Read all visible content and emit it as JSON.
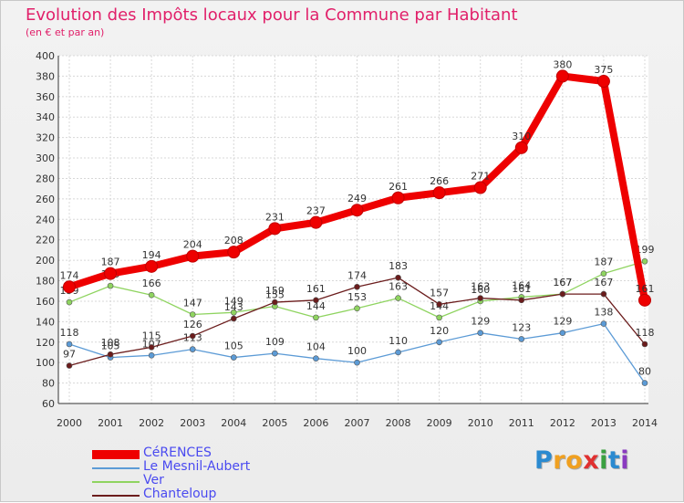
{
  "title": "Evolution des Impôts locaux pour la Commune par Habitant",
  "subtitle": "(en € et par an)",
  "brand": {
    "parts": [
      {
        "text": "P",
        "color": "#2a8ad0"
      },
      {
        "text": "r",
        "color": "#f0a020"
      },
      {
        "text": "o",
        "color": "#f0a020"
      },
      {
        "text": "x",
        "color": "#e03030"
      },
      {
        "text": "i",
        "color": "#3aa040"
      },
      {
        "text": "t",
        "color": "#2a8ad0"
      },
      {
        "text": "i",
        "color": "#8a3ac0"
      }
    ]
  },
  "chart_data": {
    "type": "line",
    "title": "Evolution des Impôts locaux pour la Commune par Habitant",
    "subtitle": "(en € et par an)",
    "categories": [
      "2000",
      "2001",
      "2002",
      "2003",
      "2004",
      "2005",
      "2006",
      "2007",
      "2008",
      "2009",
      "2010",
      "2011",
      "2012",
      "2013",
      "2014"
    ],
    "ylim": [
      60,
      400
    ],
    "yticks": [
      60,
      80,
      100,
      120,
      140,
      160,
      180,
      200,
      220,
      240,
      260,
      280,
      300,
      320,
      340,
      360,
      380,
      400
    ],
    "grid": true,
    "legend": "bottom-left",
    "series": [
      {
        "name": "CéRENCES",
        "color": "#ee0000",
        "values": [
          174,
          187,
          194,
          204,
          208,
          231,
          237,
          249,
          261,
          266,
          271,
          310,
          380,
          375,
          161
        ]
      },
      {
        "name": "Le Mesnil-Aubert",
        "color": "#5c9bd6",
        "values": [
          118,
          105,
          107,
          113,
          105,
          109,
          104,
          100,
          110,
          120,
          129,
          123,
          129,
          138,
          80
        ]
      },
      {
        "name": "Ver",
        "color": "#8fd460",
        "values": [
          159,
          175,
          166,
          147,
          149,
          155,
          144,
          153,
          163,
          144,
          160,
          164,
          167,
          187,
          199
        ]
      },
      {
        "name": "Chanteloup",
        "color": "#6b1c1c",
        "values": [
          97,
          108,
          115,
          126,
          143,
          159,
          161,
          174,
          183,
          157,
          163,
          161,
          167,
          167,
          118
        ]
      }
    ]
  }
}
